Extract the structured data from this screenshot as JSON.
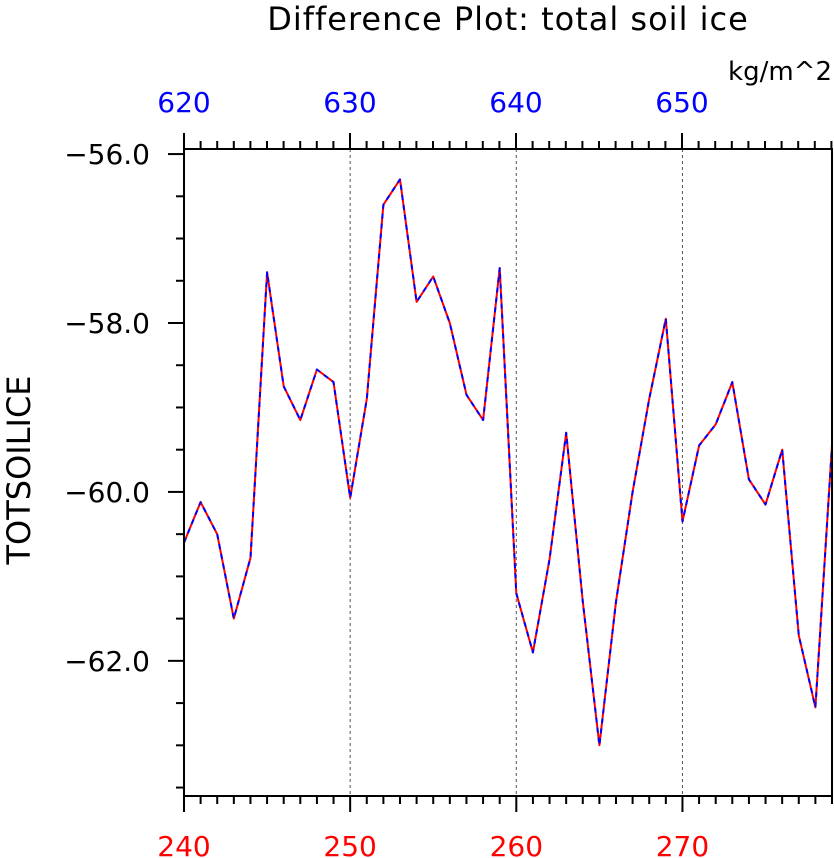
{
  "chart_data": {
    "type": "line",
    "title": "Difference Plot: total soil ice",
    "units": "kg/m^2",
    "ylabel": "TOTSOILICE",
    "ylim": [
      -63.6,
      -55.94
    ],
    "y_ticks": [
      -56.0,
      -58.0,
      -60.0,
      -62.0
    ],
    "y_tick_labels": [
      "−56.0",
      "−58.0",
      "−60.0",
      "−62.0"
    ],
    "x_bottom": {
      "range": [
        240,
        279
      ],
      "ticks": [
        240,
        250,
        260,
        270
      ],
      "tick_labels": [
        "240",
        "250",
        "260",
        "270"
      ],
      "color": "#ff0000"
    },
    "x_top": {
      "ticks": [
        620,
        630,
        640,
        650
      ],
      "tick_labels": [
        "620",
        "630",
        "640",
        "650"
      ],
      "color": "#0000ff"
    },
    "series": [
      {
        "color": "#ff0000",
        "dash": "solid",
        "x": [
          240,
          241,
          242,
          243,
          244,
          245,
          246,
          247,
          248,
          249,
          250,
          251,
          252,
          253,
          254,
          255,
          256,
          257,
          258,
          259,
          260,
          261,
          262,
          263,
          264,
          265,
          266,
          267,
          268,
          269,
          270,
          271,
          272,
          273,
          274,
          275,
          276,
          277,
          278,
          279
        ],
        "y": [
          -60.6,
          -60.12,
          -60.5,
          -61.5,
          -60.78,
          -57.4,
          -58.75,
          -59.15,
          -58.55,
          -58.7,
          -60.07,
          -58.9,
          -56.6,
          -56.3,
          -57.75,
          -57.45,
          -58.0,
          -58.85,
          -59.15,
          -57.35,
          -61.2,
          -61.9,
          -60.8,
          -59.3,
          -61.3,
          -63.0,
          -61.3,
          -60.0,
          -58.9,
          -57.95,
          -60.35,
          -59.45,
          -59.2,
          -58.7,
          -59.85,
          -60.15,
          -59.5,
          -61.7,
          -62.55,
          -59.45
        ]
      },
      {
        "color": "#0000ff",
        "dash": "dashed",
        "x": [
          240,
          241,
          242,
          243,
          244,
          245,
          246,
          247,
          248,
          249,
          250,
          251,
          252,
          253,
          254,
          255,
          256,
          257,
          258,
          259,
          260,
          261,
          262,
          263,
          264,
          265,
          266,
          267,
          268,
          269,
          270,
          271,
          272,
          273,
          274,
          275,
          276,
          277,
          278,
          279
        ],
        "y": [
          -60.6,
          -60.12,
          -60.5,
          -61.5,
          -60.78,
          -57.4,
          -58.75,
          -59.15,
          -58.55,
          -58.7,
          -60.07,
          -58.9,
          -56.6,
          -56.3,
          -57.75,
          -57.45,
          -58.0,
          -58.85,
          -59.15,
          -57.35,
          -61.2,
          -61.9,
          -60.8,
          -59.3,
          -61.3,
          -63.0,
          -61.3,
          -60.0,
          -58.9,
          -57.95,
          -60.35,
          -59.45,
          -59.2,
          -58.7,
          -59.85,
          -60.15,
          -59.5,
          -61.7,
          -62.55,
          -59.45
        ]
      }
    ],
    "grid": "dashed vertical lines at major x ticks"
  }
}
